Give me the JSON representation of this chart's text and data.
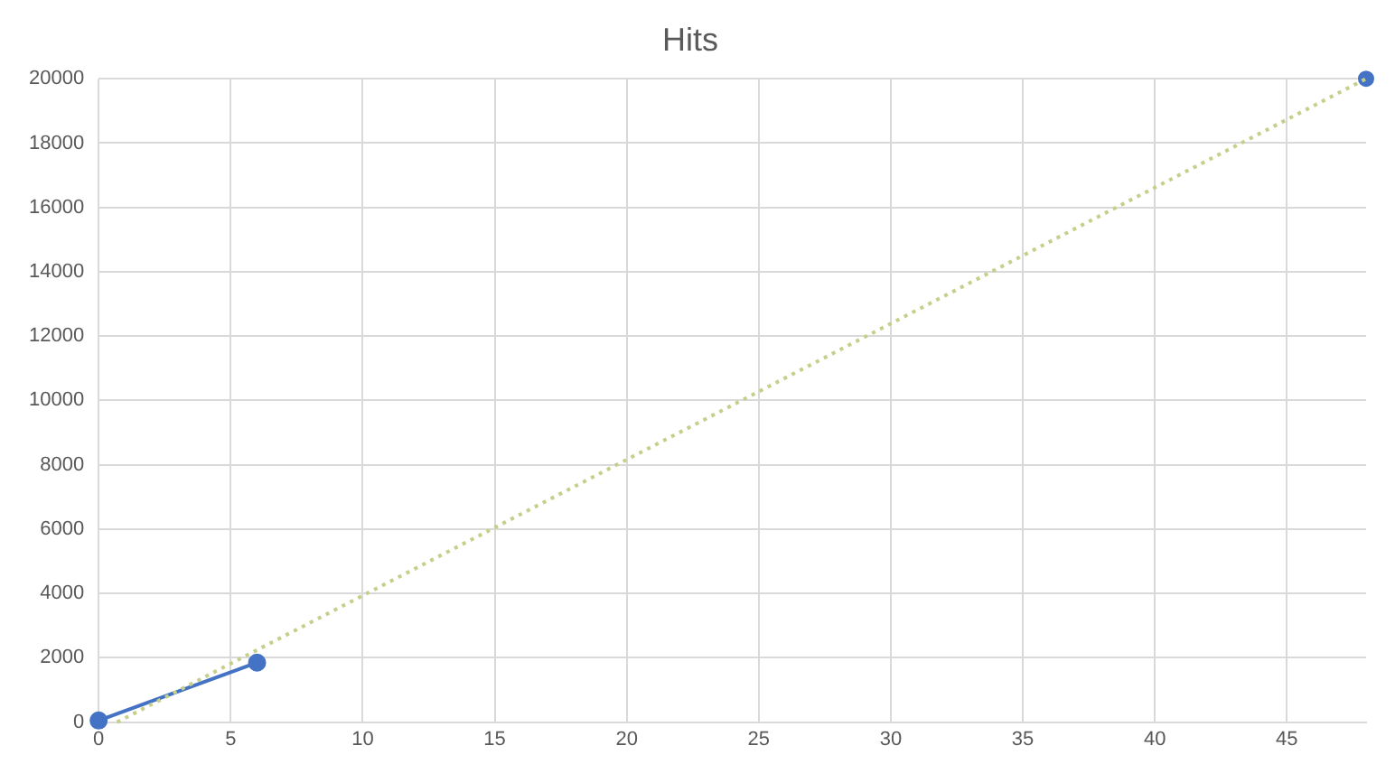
{
  "chart_data": {
    "type": "line",
    "title": "Hits",
    "series": [
      {
        "color": "#4472c4",
        "x": [
          0,
          6
        ],
        "values": [
          50,
          1850
        ],
        "marker": "circle",
        "line_style": "solid"
      },
      {
        "type": "scatter",
        "color": "#4472c4",
        "x": [
          48
        ],
        "values": [
          20000
        ],
        "marker": "circle"
      },
      {
        "type": "line",
        "color": "#c5cf8a",
        "x": [
          0.7,
          48
        ],
        "values": [
          0,
          20000
        ],
        "marker": "none",
        "line_style": "dotted"
      }
    ],
    "xlim": [
      0,
      48
    ],
    "xticks": [
      0,
      5,
      10,
      15,
      20,
      25,
      30,
      35,
      40,
      45
    ],
    "ylim": [
      0,
      20000
    ],
    "yticks": [
      0,
      2000,
      4000,
      6000,
      8000,
      10000,
      12000,
      14000,
      16000,
      18000,
      20000
    ],
    "grid": true,
    "legend": false
  }
}
